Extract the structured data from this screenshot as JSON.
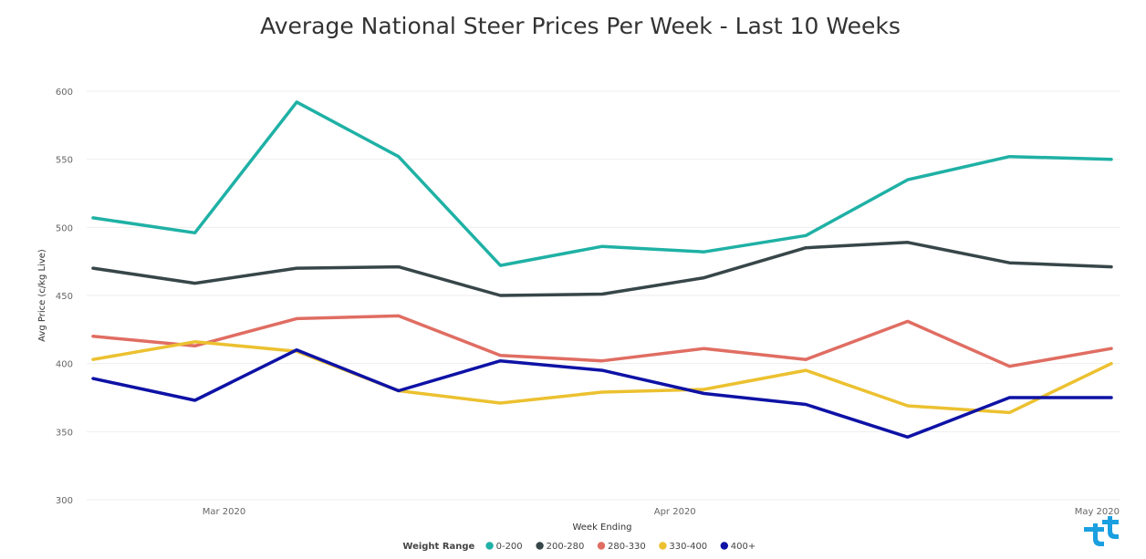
{
  "chart_data": {
    "type": "line",
    "title": "Average National Steer Prices Per Week - Last 10 Weeks",
    "xlabel": "Week Ending",
    "ylabel": "Avg Price (c/kg Live)",
    "ylim": [
      300,
      600
    ],
    "yticks": [
      300,
      350,
      400,
      450,
      500,
      550,
      600
    ],
    "x": [
      "2020-02-21",
      "2020-02-28",
      "2020-03-06",
      "2020-03-13",
      "2020-03-20",
      "2020-03-27",
      "2020-04-03",
      "2020-04-10",
      "2020-04-17",
      "2020-04-24",
      "2020-05-01"
    ],
    "xticks": [
      {
        "date": "2020-03-01",
        "label": "Mar 2020"
      },
      {
        "date": "2020-04-01",
        "label": "Apr 2020"
      },
      {
        "date": "2020-05-01",
        "label": "May 2020"
      }
    ],
    "legend_title": "Weight Range",
    "legend_position": "bottom-center",
    "grid": true,
    "series": [
      {
        "name": "0-200",
        "color": "#1fb1a5",
        "values": [
          507,
          496,
          592,
          552,
          472,
          486,
          482,
          494,
          535,
          552,
          550
        ]
      },
      {
        "name": "200-280",
        "color": "#374649",
        "values": [
          470,
          459,
          470,
          471,
          450,
          451,
          463,
          485,
          489,
          474,
          471
        ]
      },
      {
        "name": "280-330",
        "color": "#e06d62",
        "values": [
          420,
          413,
          433,
          435,
          406,
          402,
          411,
          403,
          431,
          398,
          411
        ]
      },
      {
        "name": "330-400",
        "color": "#ecc130",
        "values": [
          403,
          416,
          409,
          380,
          371,
          379,
          381,
          395,
          369,
          364,
          400
        ]
      },
      {
        "name": "400+",
        "color": "#0e12a5",
        "values": [
          389,
          373,
          410,
          380,
          402,
          395,
          378,
          370,
          346,
          375,
          375
        ]
      }
    ]
  },
  "logo": {
    "icon": "tt-logo-icon",
    "color": "#1a9fe0"
  }
}
